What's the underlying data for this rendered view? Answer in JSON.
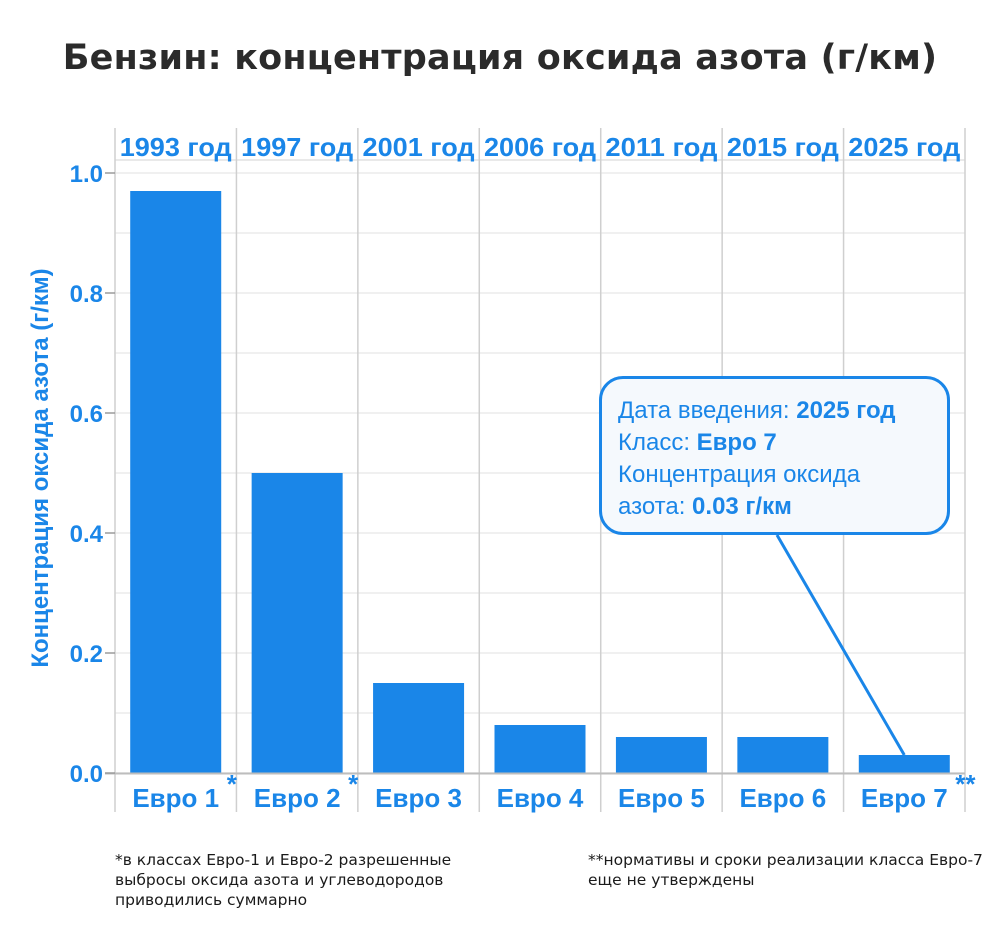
{
  "chart_data": {
    "type": "bar",
    "title": "Бензин: концентрация оксида азота (г/км)",
    "ylabel": "Концентрация оксида азота (г/км)",
    "ylim": [
      0,
      1.0
    ],
    "yticks": [
      "0.0",
      "0.2",
      "0.4",
      "0.6",
      "0.8",
      "1.0"
    ],
    "categories": [
      "Евро 1",
      "Евро 2",
      "Евро 3",
      "Евро 4",
      "Евро 5",
      "Евро 6",
      "Евро 7"
    ],
    "category_markers": [
      "*",
      "*",
      "",
      "",
      "",
      "",
      "**"
    ],
    "years": [
      "1993 год",
      "1997 год",
      "2001 год",
      "2006 год",
      "2011 год",
      "2015 год",
      "2025 год"
    ],
    "values": [
      0.97,
      0.5,
      0.15,
      0.08,
      0.06,
      0.06,
      0.03
    ],
    "bar_color": "#1a86e8",
    "grid": true,
    "tooltip": {
      "line1_label": "Дата введения: ",
      "line1_value": "2025 год",
      "line2_label": "Класс: ",
      "line2_value": "Евро 7",
      "line3_label": "Концентрация оксида",
      "line4_label": "азота: ",
      "line4_value": "0.03 г/км"
    }
  },
  "footnotes": {
    "first": "*в классах Евро-1 и Евро-2 разрешенные выбросы оксида азота и углеводородов приводились суммарно",
    "second": "**нормативы и сроки реализации класса Евро-7 еще не утверждены"
  }
}
